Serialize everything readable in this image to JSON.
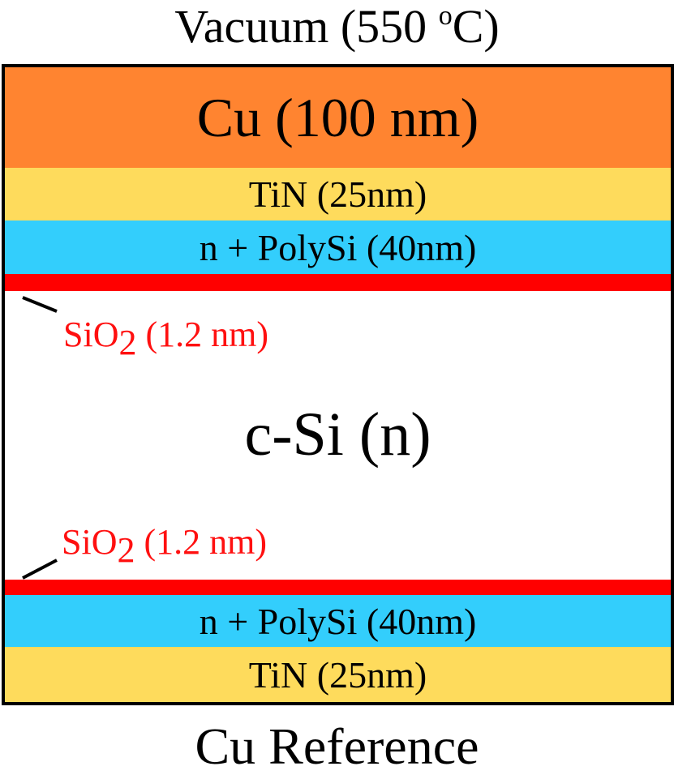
{
  "environment_label": "Vacuum (550 ",
  "environment_degree": "o",
  "environment_unit": "C)",
  "layers": {
    "cu": "Cu (100 nm)",
    "tin_top": "TiN (25nm)",
    "poly_top": "n + PolySi (40nm)",
    "substrate": "c-Si (n)",
    "poly_bottom": "n + PolySi (40nm)",
    "tin_bottom": "TiN (25nm)"
  },
  "oxide_top": {
    "prefix": "SiO",
    "subscript": "2",
    "suffix": " (1.2 nm)"
  },
  "oxide_bottom": {
    "prefix": "SiO",
    "subscript": "2",
    "suffix": " (1.2 nm)"
  },
  "sample_label": "Cu Reference",
  "colors": {
    "copper": "#ff8430",
    "tin": "#fedb5c",
    "polysilicon": "#33cefc",
    "oxide": "#ff0000",
    "oxide_label": "#ff1010"
  }
}
